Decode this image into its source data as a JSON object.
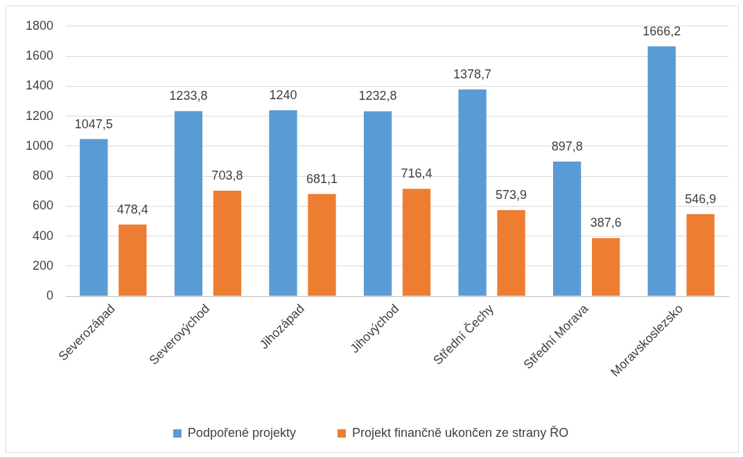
{
  "chart_data": {
    "type": "bar",
    "categories": [
      "Severozápad",
      "Severovýchod",
      "Jihozápad",
      "Jihovýchod",
      "Střední Čechy",
      "Střední Morava",
      "Moravskoslezsko"
    ],
    "series": [
      {
        "name": "Podpořené projekty",
        "color": "#5b9bd5",
        "values": [
          1047.5,
          1233.8,
          1240,
          1232.8,
          1378.7,
          897.8,
          1666.2
        ],
        "value_labels": [
          "1047,5",
          "1233,8",
          "1240",
          "1232,8",
          "1378,7",
          "897,8",
          "1666,2"
        ]
      },
      {
        "name": "Projekt finančně ukončen ze strany ŘO",
        "color": "#ed7d31",
        "values": [
          478.4,
          703.8,
          681.1,
          716.4,
          573.9,
          387.6,
          546.9
        ],
        "value_labels": [
          "478,4",
          "703,8",
          "681,1",
          "716,4",
          "573,9",
          "387,6",
          "546,9"
        ]
      }
    ],
    "ylim": [
      0,
      1800
    ],
    "yticks": [
      0,
      200,
      400,
      600,
      800,
      1000,
      1200,
      1400,
      1600,
      1800
    ],
    "grid": "y",
    "legend": "bottom"
  }
}
